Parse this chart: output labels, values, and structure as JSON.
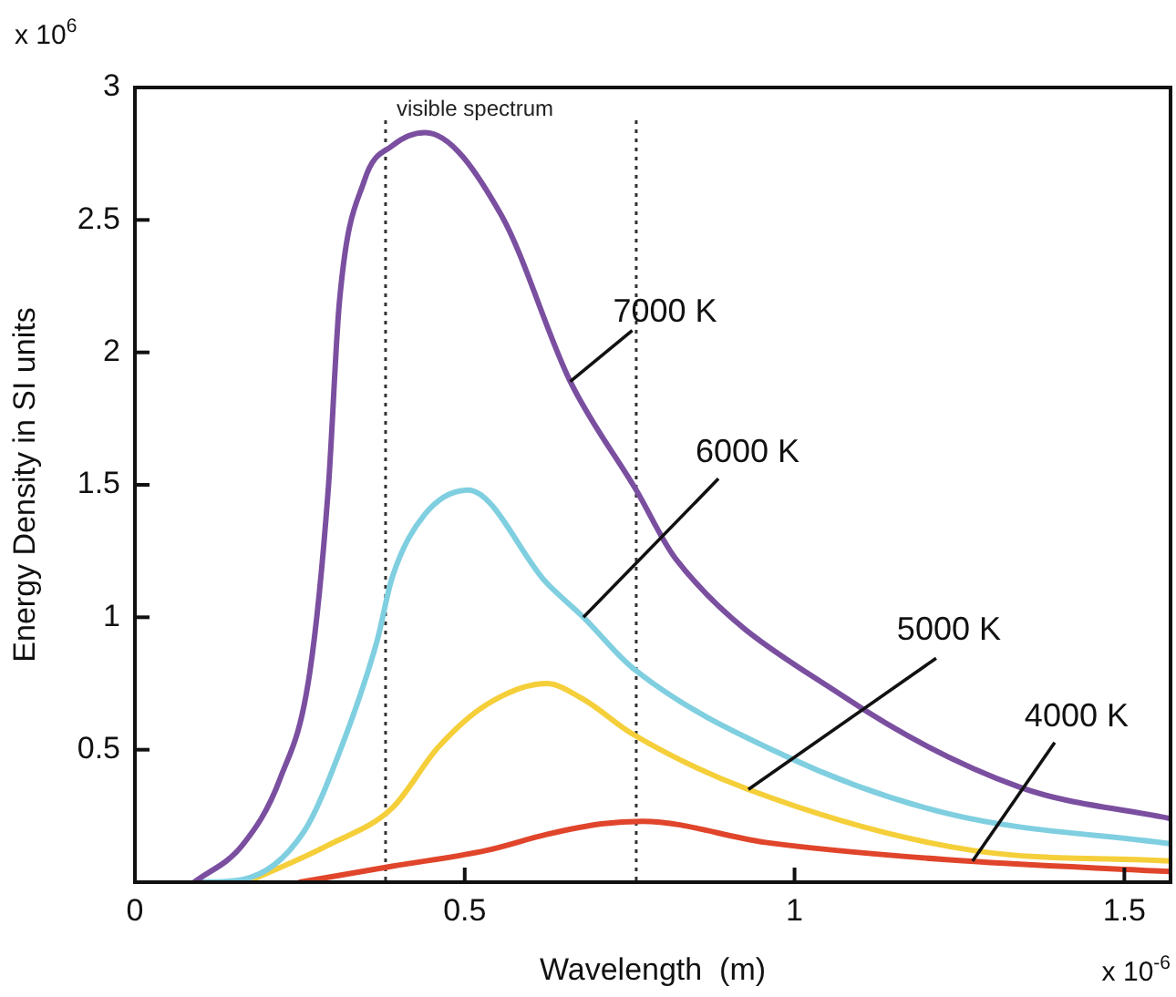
{
  "chart_data": {
    "type": "line",
    "xlabel": "Wavelength  (m)",
    "ylabel": "Energy Density in SI units",
    "xlim": [
      0,
      1.57
    ],
    "ylim": [
      0,
      3
    ],
    "xticks": [
      0,
      0.5,
      1,
      1.5
    ],
    "yticks": [
      {
        "value": 0,
        "label": null
      },
      0.5,
      1,
      1.5,
      2,
      2.5,
      3
    ],
    "grid": false,
    "marker": "none",
    "series": [
      {
        "name": "7000 K",
        "color": "#7b4fa0",
        "x": [
          0.09,
          0.163,
          0.22,
          0.265,
          0.293,
          0.31,
          0.348,
          0.39,
          0.44,
          0.555,
          0.66,
          0.76,
          0.82,
          1.075,
          1.34,
          1.57
        ],
        "values": [
          0,
          0.14,
          0.39,
          0.79,
          1.48,
          2.19,
          2.65,
          2.78,
          2.83,
          2.52,
          1.89,
          1.48,
          1.22,
          0.7,
          0.36,
          0.24
        ]
      },
      {
        "name": "6000 K",
        "color": "#7fcfe0",
        "x": [
          0.1,
          0.163,
          0.256,
          0.31,
          0.367,
          0.39,
          0.44,
          0.505,
          0.624,
          0.68,
          0.754,
          0.983,
          1.23,
          1.57
        ],
        "values": [
          0,
          0.01,
          0.19,
          0.49,
          0.91,
          1.15,
          1.39,
          1.48,
          1.13,
          1.0,
          0.81,
          0.48,
          0.26,
          0.145
        ]
      },
      {
        "name": "5000 K",
        "color": "#f5cf3a",
        "x": [
          0.17,
          0.293,
          0.39,
          0.46,
          0.533,
          0.624,
          0.68,
          0.754,
          0.93,
          1.27,
          1.57
        ],
        "values": [
          0,
          0.14,
          0.28,
          0.51,
          0.67,
          0.75,
          0.69,
          0.56,
          0.35,
          0.12,
          0.08
        ]
      },
      {
        "name": "4000 K",
        "color": "#e0452b",
        "x": [
          0.25,
          0.39,
          0.533,
          0.624,
          0.707,
          0.77,
          0.956,
          1.23,
          1.57
        ],
        "values": [
          0,
          0.06,
          0.12,
          0.18,
          0.22,
          0.23,
          0.15,
          0.085,
          0.04
        ]
      }
    ],
    "ref_lines": [
      {
        "axis": "x",
        "value": 0.38,
        "label": "visible spectrum",
        "color": "#333333",
        "line_style": "dotted"
      },
      {
        "axis": "x",
        "value": 0.76,
        "color": "#333333",
        "line_style": "dotted"
      }
    ],
    "annotations": [
      "x 10$^{6}$",
      "x 10$^{-6}$"
    ]
  }
}
